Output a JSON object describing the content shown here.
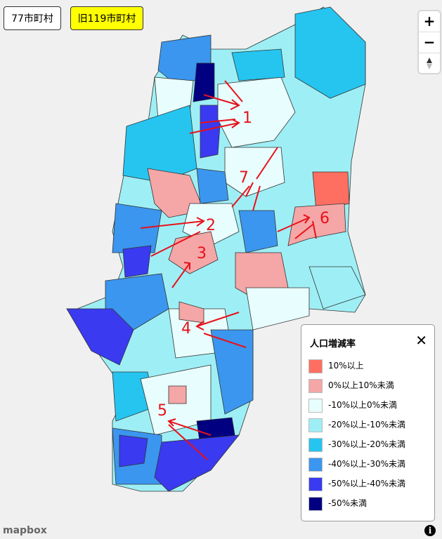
{
  "buttons": [
    "77市町村",
    "旧119市町村"
  ],
  "zoom": {
    "in": "+",
    "out": "−"
  },
  "annotations": [
    "1",
    "2",
    "3",
    "4",
    "5",
    "6",
    "7"
  ],
  "legend": {
    "title": "人口増減率",
    "close": "✕",
    "items": [
      {
        "label": "10%以上",
        "color": "#ff6f61"
      },
      {
        "label": "0%以上10%未満",
        "color": "#f5a6a6"
      },
      {
        "label": "-10%以上0%未満",
        "color": "#e8fdfd"
      },
      {
        "label": "-20%以上-10%未満",
        "color": "#9eeff5"
      },
      {
        "label": "-30%以上-20%未満",
        "color": "#25c5f0"
      },
      {
        "label": "-40%以上-30%未満",
        "color": "#3b96ef"
      },
      {
        "label": "-50%以上-40%未満",
        "color": "#3a3af0"
      },
      {
        "label": "-50%未満",
        "color": "#000080"
      }
    ]
  },
  "attribution": {
    "logo": "mapbox",
    "info": "i"
  }
}
